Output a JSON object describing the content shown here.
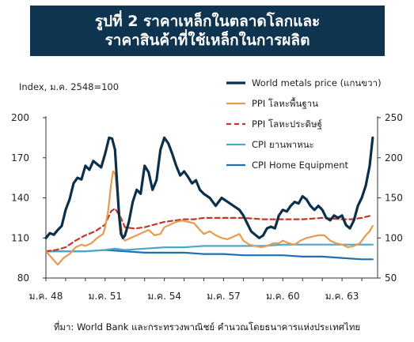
{
  "header": {
    "title_line1": "รูปที่ 2 ราคาเหล็กในตลาดโลกและ",
    "title_line2": "ราคาสินค้าที่ใช้เหล็กในการผลิต"
  },
  "source": "ที่มา: World Bank และกระทรวงพาณิชย์ คำนวณโดยธนาคารแห่งประเทศไทย",
  "chart_data": {
    "type": "line",
    "ylabel_left": "Index, ม.ค. 2548=100",
    "ylim_left": [
      80,
      200
    ],
    "yticks_left": [
      "200",
      "170",
      "140",
      "110",
      "80"
    ],
    "ylim_right": [
      50,
      250
    ],
    "yticks_right": [
      "250",
      "200",
      "150",
      "100",
      "50"
    ],
    "xlim": [
      2005.0,
      2021.8
    ],
    "xticks": [
      {
        "x": 2005.0,
        "label": "ม.ค. 48"
      },
      {
        "x": 2008.0,
        "label": "ม.ค. 51"
      },
      {
        "x": 2011.0,
        "label": "ม.ค. 54"
      },
      {
        "x": 2014.0,
        "label": "ม.ค. 57"
      },
      {
        "x": 2017.0,
        "label": "ม.ค. 60"
      },
      {
        "x": 2020.0,
        "label": "ม.ค. 63"
      }
    ],
    "grid": false,
    "legend_position": "top-right",
    "series": [
      {
        "name": "World metals price (แกนขวา)",
        "axis": "right",
        "color": "#0c2f4a",
        "dash": "none",
        "width": 3.2,
        "x": [
          2005.0,
          2005.2,
          2005.4,
          2005.6,
          2005.8,
          2006.0,
          2006.2,
          2006.4,
          2006.6,
          2006.8,
          2007.0,
          2007.2,
          2007.4,
          2007.6,
          2007.8,
          2008.0,
          2008.2,
          2008.35,
          2008.5,
          2008.6,
          2008.7,
          2008.8,
          2008.9,
          2009.0,
          2009.2,
          2009.4,
          2009.6,
          2009.8,
          2010.0,
          2010.2,
          2010.4,
          2010.6,
          2010.8,
          2011.0,
          2011.2,
          2011.4,
          2011.6,
          2011.8,
          2012.0,
          2012.2,
          2012.4,
          2012.6,
          2012.8,
          2013.0,
          2013.3,
          2013.6,
          2013.9,
          2014.2,
          2014.5,
          2014.8,
          2015.0,
          2015.2,
          2015.4,
          2015.6,
          2015.8,
          2016.0,
          2016.2,
          2016.4,
          2016.6,
          2016.8,
          2017.0,
          2017.2,
          2017.4,
          2017.6,
          2017.8,
          2018.0,
          2018.2,
          2018.4,
          2018.6,
          2018.8,
          2019.0,
          2019.2,
          2019.4,
          2019.6,
          2019.8,
          2020.0,
          2020.2,
          2020.4,
          2020.6,
          2020.8,
          2021.0,
          2021.2,
          2021.4,
          2021.55
        ],
        "values": [
          100,
          106,
          104,
          110,
          115,
          135,
          148,
          168,
          175,
          173,
          190,
          185,
          196,
          192,
          188,
          205,
          225,
          224,
          210,
          170,
          130,
          105,
          100,
          103,
          120,
          145,
          160,
          155,
          190,
          182,
          160,
          172,
          210,
          225,
          218,
          205,
          190,
          178,
          183,
          176,
          168,
          172,
          160,
          155,
          150,
          140,
          150,
          145,
          140,
          135,
          128,
          118,
          108,
          104,
          100,
          103,
          112,
          114,
          112,
          128,
          135,
          133,
          140,
          145,
          143,
          152,
          148,
          140,
          135,
          140,
          135,
          125,
          122,
          128,
          125,
          128,
          116,
          112,
          122,
          140,
          150,
          165,
          190,
          225
        ]
      },
      {
        "name": "PPI โลหะพื้นฐาน",
        "axis": "left",
        "color": "#e89a50",
        "dash": "none",
        "width": 2.2,
        "x": [
          2005.0,
          2005.3,
          2005.6,
          2005.9,
          2006.2,
          2006.5,
          2006.8,
          2007.0,
          2007.3,
          2007.6,
          2007.9,
          2008.0,
          2008.15,
          2008.3,
          2008.4,
          2008.5,
          2008.6,
          2008.75,
          2008.9,
          2009.0,
          2009.3,
          2009.6,
          2009.9,
          2010.2,
          2010.5,
          2010.8,
          2011.0,
          2011.3,
          2011.6,
          2011.9,
          2012.2,
          2012.5,
          2012.8,
          2013.0,
          2013.3,
          2013.6,
          2013.9,
          2014.2,
          2014.5,
          2014.8,
          2015.0,
          2015.3,
          2015.6,
          2015.9,
          2016.2,
          2016.5,
          2016.8,
          2017.0,
          2017.3,
          2017.6,
          2017.9,
          2018.2,
          2018.5,
          2018.8,
          2019.1,
          2019.4,
          2019.7,
          2020.0,
          2020.3,
          2020.6,
          2020.9,
          2021.2,
          2021.4,
          2021.55
        ],
        "values": [
          100,
          95,
          90,
          95,
          98,
          103,
          105,
          104,
          106,
          110,
          113,
          118,
          130,
          150,
          160,
          158,
          145,
          125,
          110,
          108,
          110,
          112,
          114,
          116,
          112,
          113,
          118,
          120,
          122,
          123,
          122,
          121,
          116,
          113,
          115,
          112,
          110,
          109,
          111,
          113,
          108,
          105,
          104,
          103,
          104,
          106,
          106,
          108,
          106,
          105,
          108,
          110,
          111,
          112,
          112,
          108,
          106,
          105,
          103,
          104,
          106,
          112,
          115,
          119
        ]
      },
      {
        "name": "PPI โลหะประดิษฐ์",
        "axis": "left",
        "color": "#c0392b",
        "dash": "6,4",
        "width": 2.2,
        "x": [
          2005.0,
          2005.5,
          2006.0,
          2006.5,
          2007.0,
          2007.5,
          2008.0,
          2008.3,
          2008.5,
          2008.8,
          2009.0,
          2009.5,
          2010.0,
          2010.5,
          2011.0,
          2011.5,
          2012.0,
          2012.5,
          2013.0,
          2014.0,
          2015.0,
          2016.0,
          2017.0,
          2018.0,
          2019.0,
          2020.0,
          2020.5,
          2021.0,
          2021.55
        ],
        "values": [
          100,
          101,
          103,
          108,
          112,
          115,
          120,
          130,
          132,
          125,
          118,
          117,
          118,
          120,
          122,
          123,
          124,
          124,
          125,
          125,
          125,
          124,
          124,
          124,
          125,
          124,
          124,
          125,
          127
        ]
      },
      {
        "name": "CPI ยานพาหนะ",
        "axis": "left",
        "color": "#4aa8c9",
        "dash": "none",
        "width": 2.2,
        "x": [
          2005.0,
          2006.0,
          2007.0,
          2008.0,
          2008.5,
          2009.0,
          2010.0,
          2011.0,
          2012.0,
          2013.0,
          2014.0,
          2015.0,
          2016.0,
          2017.0,
          2018.0,
          2019.0,
          2020.0,
          2021.0,
          2021.55
        ],
        "values": [
          100,
          100,
          100,
          101,
          102,
          101,
          102,
          103,
          103,
          104,
          104,
          104,
          104,
          105,
          105,
          105,
          105,
          105,
          105
        ]
      },
      {
        "name": "CPI Home Equipment",
        "axis": "left",
        "color": "#1f6fb2",
        "dash": "none",
        "width": 2.2,
        "x": [
          2005.0,
          2006.0,
          2007.0,
          2008.0,
          2009.0,
          2010.0,
          2011.0,
          2012.0,
          2013.0,
          2014.0,
          2015.0,
          2016.0,
          2017.0,
          2018.0,
          2019.0,
          2020.0,
          2021.0,
          2021.55
        ],
        "values": [
          100,
          100,
          100,
          101,
          100,
          99,
          99,
          99,
          98,
          98,
          97,
          97,
          97,
          96,
          96,
          95,
          94,
          94
        ]
      }
    ]
  }
}
